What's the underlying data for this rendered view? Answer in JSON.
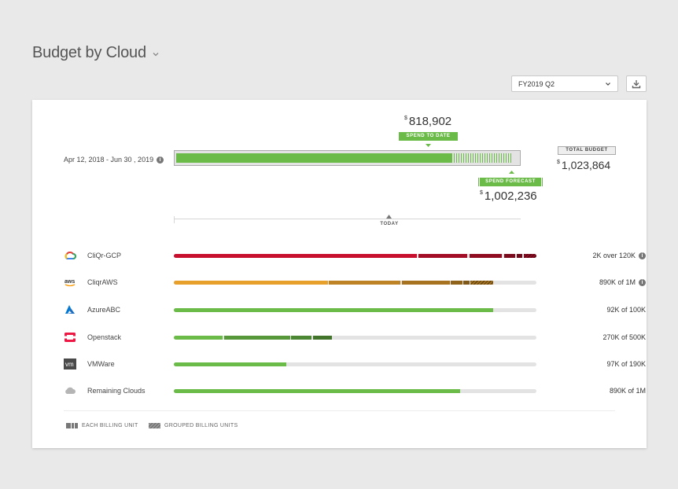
{
  "page": {
    "title": "Budget by Cloud"
  },
  "toolbar": {
    "quarter": "FY2019 Q2"
  },
  "summary": {
    "date_range": "Apr 12, 2018 - Jun 30 , 2019",
    "currency": "$",
    "spend_to_date_amount": "818,902",
    "spend_to_date_label": "SPEND TO DATE",
    "spend_to_date_fraction": 0.8,
    "spend_forecast_label": "SPEND FORECAST",
    "spend_forecast_amount": "1,002,236",
    "spend_forecast_fraction": 0.98,
    "total_budget_label": "TOTAL BUDGET",
    "total_budget_amount": "1,023,864",
    "today_label": "TODAY"
  },
  "clouds": [
    {
      "name": "CliQr-GCP",
      "value": "2K over 120K",
      "info": true,
      "logo": "gcp-logo",
      "color": "#c8102e",
      "segments": [
        [
          0,
          0.67
        ],
        [
          0.675,
          0.81
        ],
        [
          0.815,
          0.905
        ],
        [
          0.91,
          0.94
        ],
        [
          0.945,
          0.96
        ]
      ],
      "hatched": [
        0.965,
        1.0
      ]
    },
    {
      "name": "CliqrAWS",
      "value": "890K of 1M",
      "info": true,
      "logo": "aws-logo",
      "color": "#e8a02c",
      "segments": [
        [
          0,
          0.425
        ],
        [
          0.428,
          0.625
        ],
        [
          0.628,
          0.76
        ],
        [
          0.763,
          0.795
        ],
        [
          0.798,
          0.815
        ]
      ],
      "hatched": [
        0.818,
        0.88
      ]
    },
    {
      "name": "AzureABC",
      "value": "92K of 100K",
      "info": false,
      "logo": "azure-logo",
      "color": "#6abb47",
      "segments": [
        [
          0,
          0.88
        ]
      ],
      "hatched": null
    },
    {
      "name": "Openstack",
      "value": "270K of 500K",
      "info": false,
      "logo": "openstack-logo",
      "color": "#6abb47",
      "segments": [
        [
          0,
          0.135
        ],
        [
          0.138,
          0.32
        ],
        [
          0.323,
          0.38
        ],
        [
          0.383,
          0.435
        ]
      ],
      "hatched": null
    },
    {
      "name": "VMWare",
      "value": "97K of 190K",
      "info": false,
      "logo": "vmware-logo",
      "color": "#6abb47",
      "segments": [
        [
          0,
          0.31
        ]
      ],
      "hatched": null
    },
    {
      "name": "Remaining Clouds",
      "value": "890K of 1M",
      "info": false,
      "logo": "cloud-icon",
      "color": "#6abb47",
      "segments": [
        [
          0,
          0.79
        ]
      ],
      "hatched": null
    }
  ],
  "legend": {
    "each_label": "EACH BILLING UNIT",
    "grouped_label": "GROUPED BILLING UNITS"
  },
  "colors": {
    "green": "#6abb47",
    "red": "#c8102e",
    "orange": "#e8a02c"
  }
}
